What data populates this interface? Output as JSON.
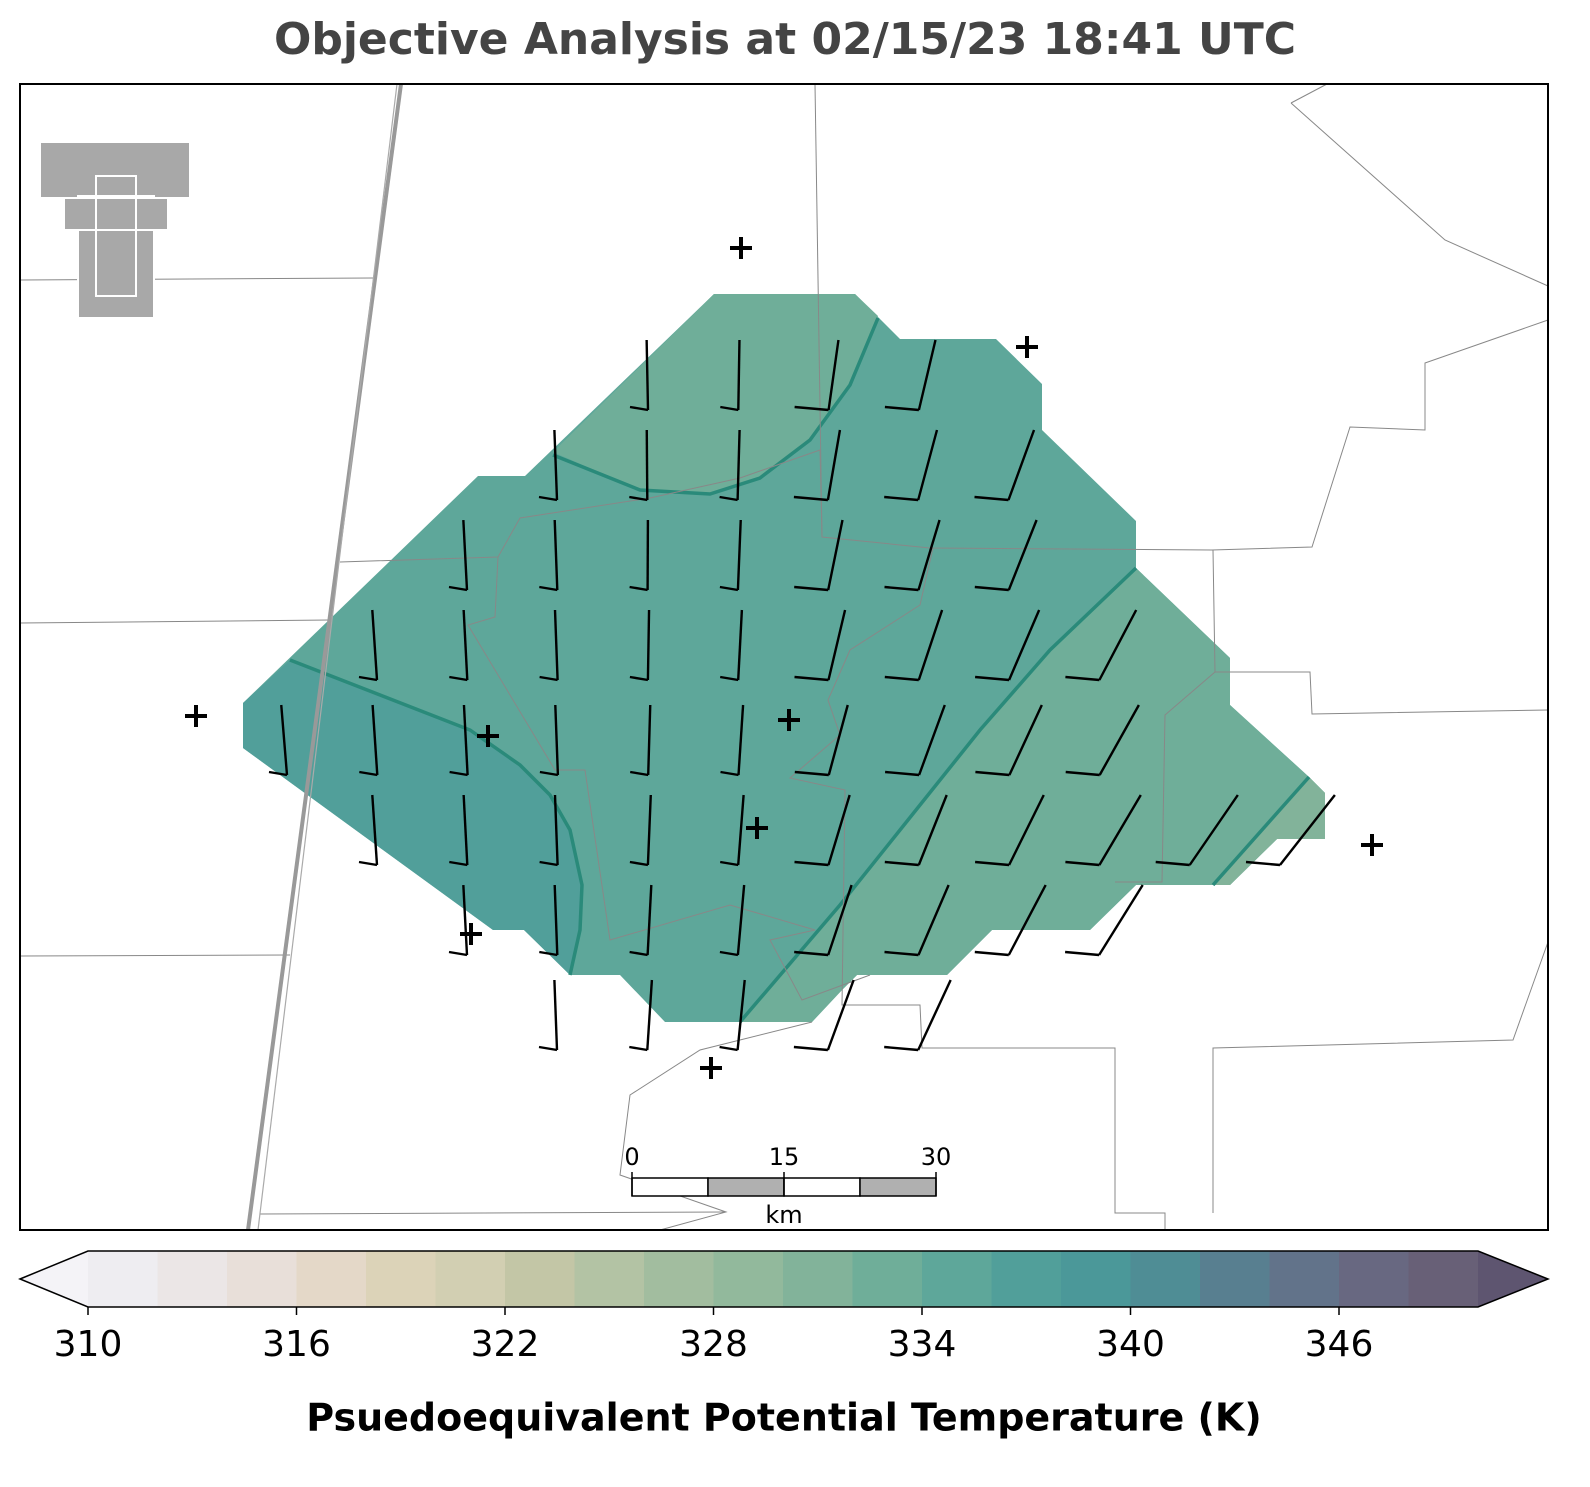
{
  "title": "Objective Analysis at 02/15/23 18:41 UTC",
  "colorbar": {
    "label": "Psuedoequivalent Potential Temperature (K)",
    "range": [
      310,
      350
    ],
    "ticks": [
      310,
      316,
      322,
      328,
      334,
      340,
      346
    ],
    "colors": [
      "#eeedf1",
      "#ebe6e6",
      "#e8dfd9",
      "#e4d8c8",
      "#dcd3b8",
      "#d2cfb2",
      "#c3c6a6",
      "#b3c3a4",
      "#a2bd9f",
      "#92b99c",
      "#82b39a",
      "#6fae99",
      "#5ea79a",
      "#519f9a",
      "#4b9899",
      "#4f8d95",
      "#587f90",
      "#62738a",
      "#686881",
      "#686077"
    ],
    "under_color": "#f4f3f7",
    "over_color": "#5e5570"
  },
  "scale_bar": {
    "range": [
      0,
      30
    ],
    "ticks": [
      0,
      15,
      30
    ],
    "unit": "km"
  }
}
